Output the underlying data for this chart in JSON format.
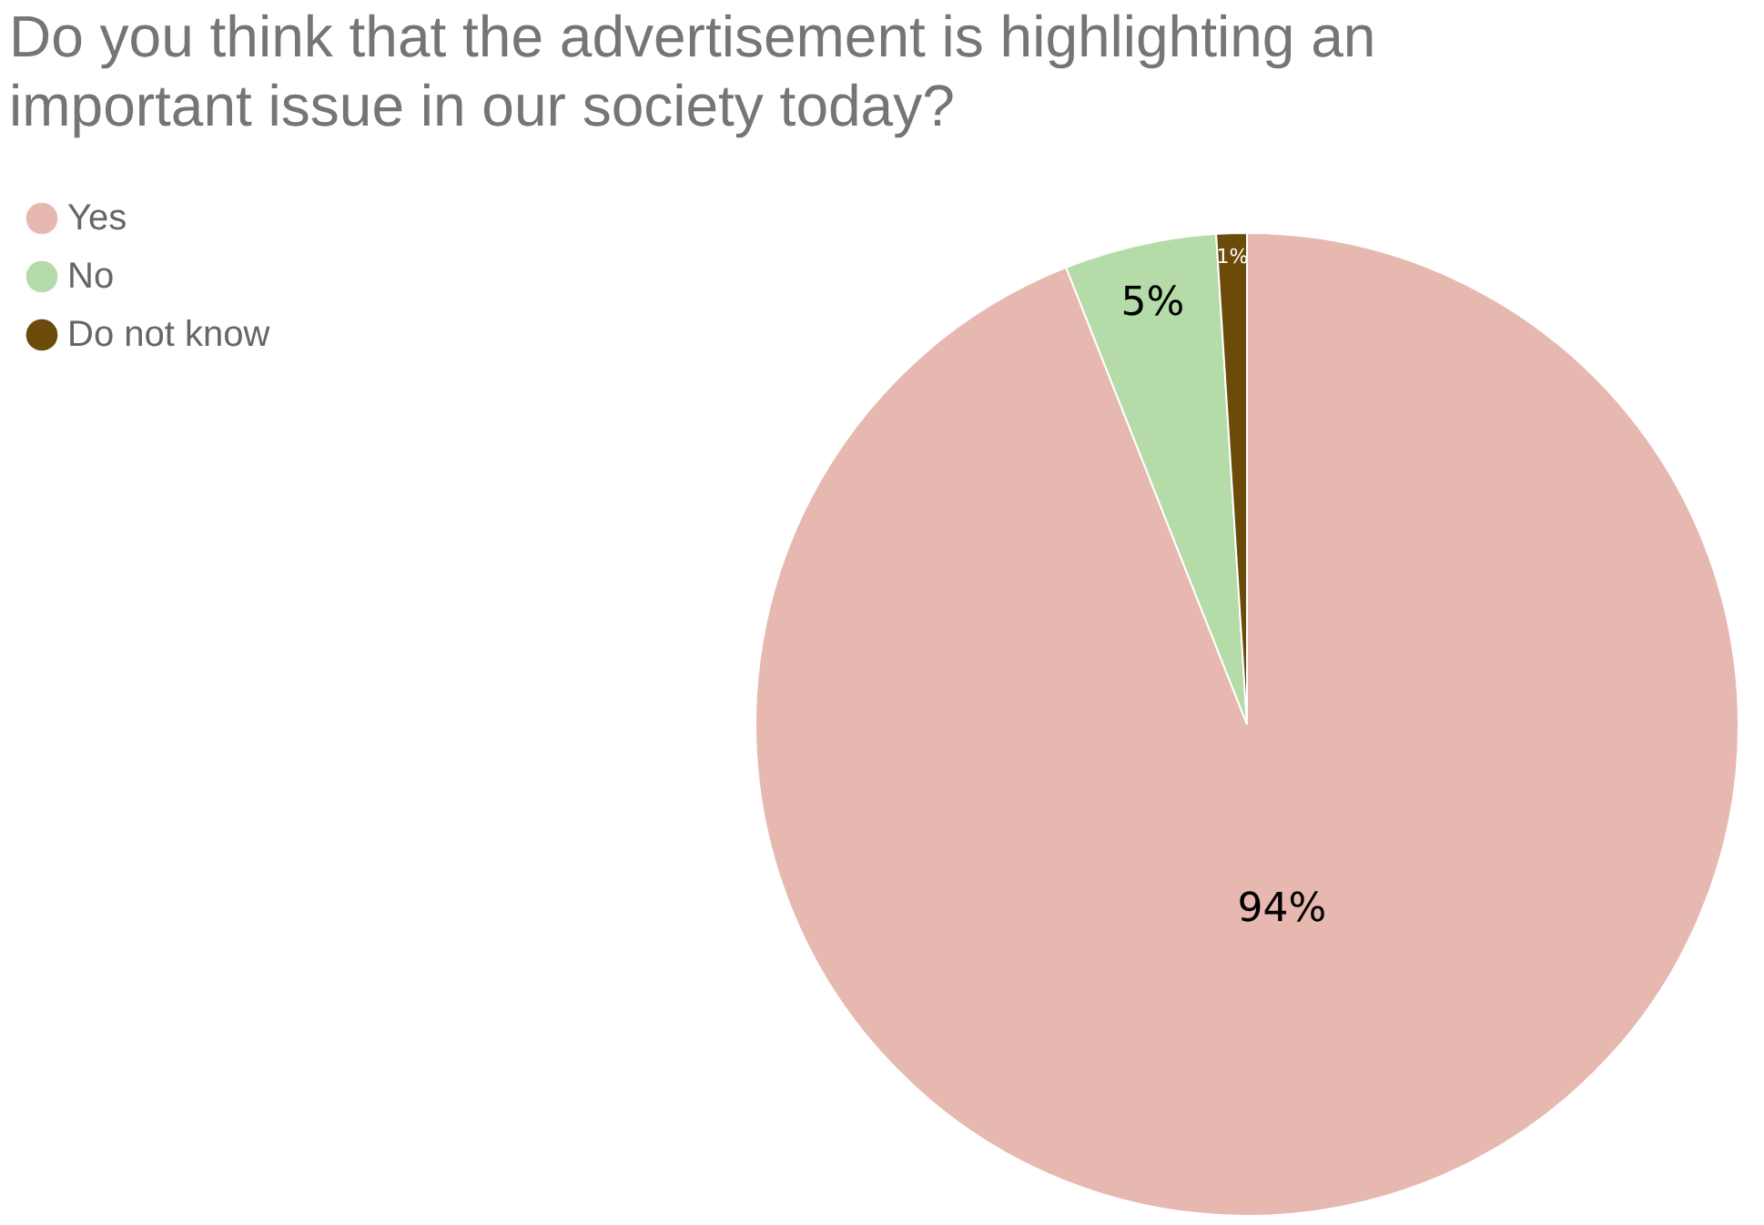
{
  "chart_data": {
    "type": "pie",
    "title": "Do you think that the advertisement is highlighting an important issue in our society today?",
    "categories": [
      "Yes",
      "No",
      "Do not know"
    ],
    "values": [
      94,
      5,
      1
    ],
    "value_labels": [
      "94%",
      "5%",
      "1%"
    ],
    "colors": [
      "#e6b8b0",
      "#b5dba8",
      "#6b4a0a"
    ],
    "legend": "top left"
  }
}
